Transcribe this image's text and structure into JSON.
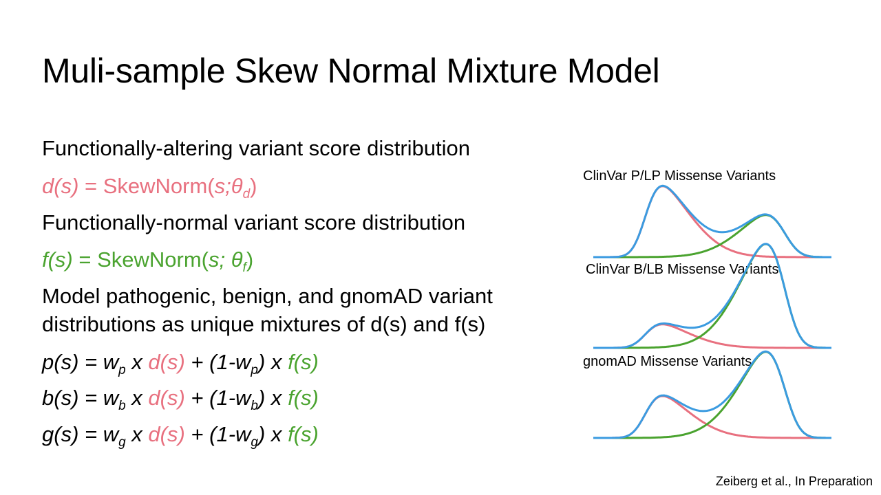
{
  "slide": {
    "title": "Muli-sample Skew Normal Mixture Model",
    "citation": "Zeiberg et al., In Preparation"
  },
  "content": {
    "line1": "Functionally-altering variant score distribution",
    "d_lhs": "d(s)",
    "d_eq": " = SkewNorm(",
    "d_arg": "s;θ",
    "d_sub": "d",
    "d_close": ")",
    "line3": "Functionally-normal variant score distribution",
    "f_lhs": "f(s)",
    "f_eq": " = SkewNorm(",
    "f_arg": "s; θ",
    "f_sub": "f",
    "f_close": ")",
    "line5a": "Model pathogenic, benign, and gnomAD variant",
    "line5b": "distributions as unique mixtures of d(s) and f(s)",
    "eq_p": {
      "lhs": "p(s) = w",
      "sub1": "p",
      "mid1": " x ",
      "d": "d(s)",
      "mid2": " + (1-w",
      "sub2": "p",
      "mid3": ") x ",
      "f": "f(s)"
    },
    "eq_b": {
      "lhs": "b(s) = w",
      "sub1": "b",
      "mid1": " x ",
      "d": "d(s)",
      "mid2": " + (1-w",
      "sub2": "b",
      "mid3": ") x ",
      "f": "f(s)"
    },
    "eq_g": {
      "lhs": "g(s) = w",
      "sub1": "g",
      "mid1": " x ",
      "d": "d(s)",
      "mid2": " + (1-w",
      "sub2": "g",
      "mid3": ") x ",
      "f": "f(s)"
    }
  },
  "colors": {
    "altering": "#e8707f",
    "normal": "#4aa32f",
    "mixture": "#3b9be0"
  },
  "chart_data": [
    {
      "type": "line",
      "title": "ClinVar P/LP Missense Variants",
      "series": [
        {
          "name": "d(s)"
        },
        {
          "name": "f(s)"
        },
        {
          "name": "mixture"
        }
      ],
      "weight_d": 0.62
    },
    {
      "type": "line",
      "title": "ClinVar B/LB Missense Variants",
      "series": [
        {
          "name": "d(s)"
        },
        {
          "name": "f(s)"
        },
        {
          "name": "mixture"
        }
      ],
      "weight_d": 0.18
    },
    {
      "type": "line",
      "title": "gnomAD Missense Variants",
      "series": [
        {
          "name": "d(s)"
        },
        {
          "name": "f(s)"
        },
        {
          "name": "mixture"
        }
      ],
      "weight_d": 0.32
    }
  ]
}
